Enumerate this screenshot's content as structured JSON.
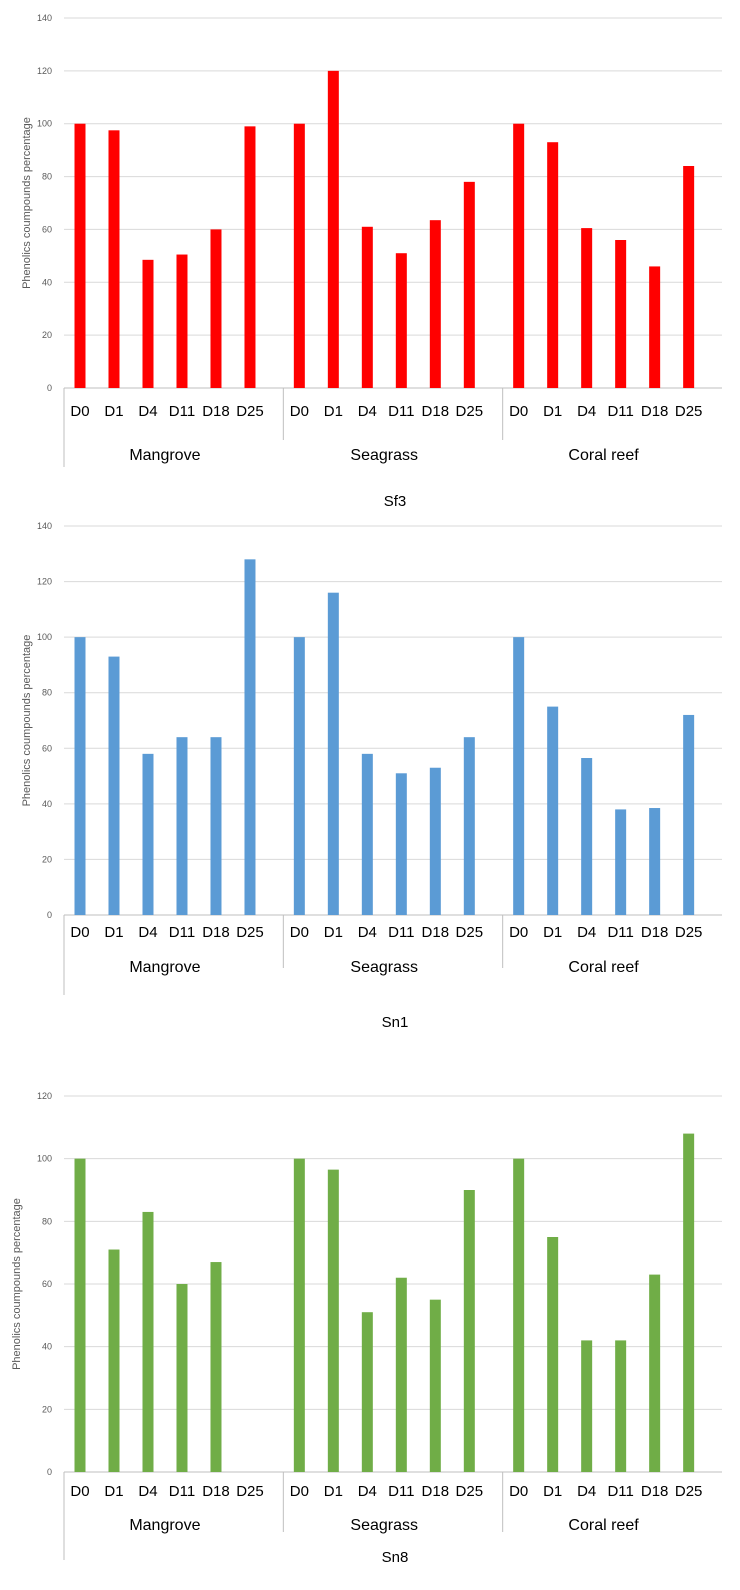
{
  "chart_data": [
    {
      "type": "bar",
      "title": "Sf3",
      "ylabel": "Phenolics coumpounds percentage",
      "ylim": [
        0,
        140
      ],
      "yticks": [
        0,
        20,
        40,
        60,
        80,
        100,
        120,
        140
      ],
      "color": "#ff0000",
      "grid": true,
      "groups": [
        {
          "name": "Mangrove",
          "categories": [
            "D0",
            "D1",
            "D4",
            "D11",
            "D18",
            "D25"
          ],
          "values": [
            100,
            97.5,
            48.5,
            50.5,
            60,
            99
          ]
        },
        {
          "name": "Seagrass",
          "categories": [
            "D0",
            "D1",
            "D4",
            "D11",
            "D18",
            "D25"
          ],
          "values": [
            100,
            120,
            61,
            51,
            63.5,
            78
          ]
        },
        {
          "name": "Coral reef",
          "categories": [
            "D0",
            "D1",
            "D4",
            "D11",
            "D18",
            "D25"
          ],
          "values": [
            100,
            93,
            60.5,
            56,
            46,
            84
          ]
        }
      ]
    },
    {
      "type": "bar",
      "title": "Sn1",
      "ylabel": "Phenolics coumpounds percentage",
      "ylim": [
        0,
        140
      ],
      "yticks": [
        0,
        20,
        40,
        60,
        80,
        100,
        120,
        140
      ],
      "color": "#5b9bd5",
      "grid": true,
      "groups": [
        {
          "name": "Mangrove",
          "categories": [
            "D0",
            "D1",
            "D4",
            "D11",
            "D18",
            "D25"
          ],
          "values": [
            100,
            93,
            58,
            64,
            64,
            128
          ]
        },
        {
          "name": "Seagrass",
          "categories": [
            "D0",
            "D1",
            "D4",
            "D11",
            "D18",
            "D25"
          ],
          "values": [
            100,
            116,
            58,
            51,
            53,
            64
          ]
        },
        {
          "name": "Coral reef",
          "categories": [
            "D0",
            "D1",
            "D4",
            "D11",
            "D18",
            "D25"
          ],
          "values": [
            100,
            75,
            56.5,
            38,
            38.5,
            72
          ]
        }
      ]
    },
    {
      "type": "bar",
      "title": "Sn8",
      "ylabel": "Phenolics coumpounds percentage",
      "ylim": [
        0,
        120
      ],
      "yticks": [
        0,
        20,
        40,
        60,
        80,
        100,
        120
      ],
      "color": "#70ad47",
      "grid": true,
      "groups": [
        {
          "name": "Mangrove",
          "categories": [
            "D0",
            "D1",
            "D4",
            "D11",
            "D18",
            "D25"
          ],
          "values": [
            100,
            71,
            83,
            60,
            67,
            0
          ]
        },
        {
          "name": "Seagrass",
          "categories": [
            "D0",
            "D1",
            "D4",
            "D11",
            "D18",
            "D25"
          ],
          "values": [
            100,
            96.5,
            51,
            62,
            55,
            90
          ]
        },
        {
          "name": "Coral reef",
          "categories": [
            "D0",
            "D1",
            "D4",
            "D11",
            "D18",
            "D25"
          ],
          "values": [
            100,
            75,
            42,
            42,
            63,
            108
          ]
        }
      ]
    }
  ]
}
